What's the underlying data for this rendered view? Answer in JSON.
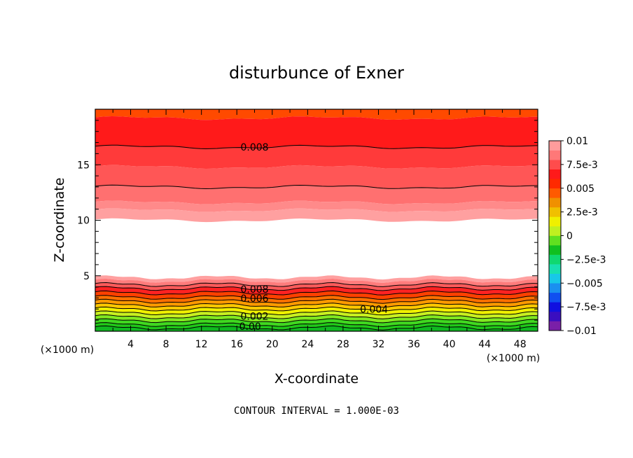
{
  "chart_data": {
    "type": "contour",
    "title": "disturbunce of Exner",
    "xlabel": "X-coordinate",
    "ylabel": "Z-coordinate",
    "x_unit": "(×1000 m)",
    "x_unit_right": "(×1000 m)",
    "xlim": [
      0,
      50
    ],
    "ylim": [
      0,
      20
    ],
    "x_ticks": [
      "4",
      "8",
      "12",
      "16",
      "20",
      "24",
      "28",
      "32",
      "36",
      "40",
      "44",
      "48"
    ],
    "y_ticks": [
      "5",
      "10",
      "15"
    ],
    "contour_interval_text": "CONTOUR INTERVAL = 1.000E-03",
    "colorbar": {
      "range": [
        -0.01,
        0.01
      ],
      "labels": [
        "0.01",
        "7.5e-3",
        "0.005",
        "2.5e-3",
        "0",
        "−2.5e-3",
        "−0.005",
        "−7.5e-3",
        "−0.01"
      ],
      "colors": [
        "#7a1fa8",
        "#3a0ec0",
        "#1010e0",
        "#1050f0",
        "#1a90f0",
        "#18c8e8",
        "#18e0b0",
        "#10d870",
        "#10c020",
        "#60e020",
        "#c0f020",
        "#f0f000",
        "#f0c000",
        "#f09000",
        "#ff5a00",
        "#ff2a00",
        "#ff1a1a",
        "#ff4c4c",
        "#ff7878",
        "#ff9c9c"
      ]
    },
    "contour_labels": [
      {
        "text": "0.008",
        "x": 18,
        "z": 16.6
      },
      {
        "text": "0.008",
        "x": 18,
        "z": 3.8
      },
      {
        "text": "0.006",
        "x": 18,
        "z": 2.95
      },
      {
        "text": "0.004",
        "x": 31.5,
        "z": 2.0
      },
      {
        "text": "0.002",
        "x": 18,
        "z": 1.35
      },
      {
        "text": "0.00",
        "x": 17.5,
        "z": 0.45
      }
    ],
    "fields": {
      "upper_bands": [
        {
          "z": 20.0,
          "color": "#ff4a00"
        },
        {
          "z": 19.2,
          "color": "#ff1a1a"
        },
        {
          "z": 16.6,
          "color": "#ff3a3a"
        },
        {
          "z": 14.8,
          "color": "#ff5656"
        },
        {
          "z": 13.0,
          "color": "#ff7070"
        },
        {
          "z": 11.6,
          "color": "#ff8a8a"
        },
        {
          "z": 10.9,
          "color": "#ffa0a0"
        }
      ],
      "white_region": [
        5.0,
        10.0
      ],
      "lower_bands": [
        {
          "z": 4.85,
          "color": "#ffa0a0"
        },
        {
          "z": 4.55,
          "color": "#ff7c7c"
        },
        {
          "z": 4.2,
          "color": "#ff5a5a"
        },
        {
          "z": 3.85,
          "color": "#ff2222"
        },
        {
          "z": 3.45,
          "color": "#ff4000"
        },
        {
          "z": 3.05,
          "color": "#ff7000"
        },
        {
          "z": 2.7,
          "color": "#ff9a00"
        },
        {
          "z": 2.35,
          "color": "#ffc800"
        },
        {
          "z": 2.0,
          "color": "#f0f000"
        },
        {
          "z": 1.65,
          "color": "#c8f020"
        },
        {
          "z": 1.3,
          "color": "#80e820"
        },
        {
          "z": 0.95,
          "color": "#40d820"
        },
        {
          "z": 0.6,
          "color": "#20c818"
        },
        {
          "z": 0.3,
          "color": "#10b820"
        }
      ],
      "upper_contours": [
        16.6,
        13.0
      ],
      "lower_contours": [
        4.2,
        3.85,
        3.45,
        3.05,
        2.7,
        2.35,
        2.0,
        1.65,
        1.3,
        0.95,
        0.6,
        0.3
      ]
    }
  }
}
